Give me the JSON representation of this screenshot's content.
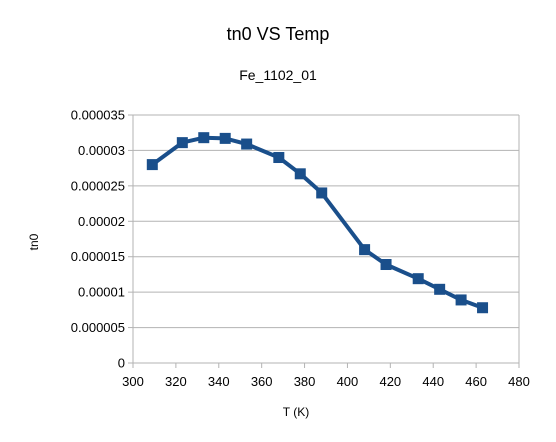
{
  "chart_data": {
    "type": "line",
    "title": "tn0 VS Temp",
    "subtitle": "Fe_1102_01",
    "xlabel": "T (K)",
    "ylabel": "tn0",
    "xlim": [
      300,
      480
    ],
    "ylim": [
      0,
      3.5e-05
    ],
    "x_ticks": [
      "300",
      "320",
      "340",
      "360",
      "380",
      "400",
      "420",
      "440",
      "460",
      "480"
    ],
    "y_ticks": [
      "0",
      "0.000005",
      "0.00001",
      "0.000015",
      "0.00002",
      "0.000025",
      "0.00003",
      "0.000035"
    ],
    "x_tick_values": [
      300,
      320,
      340,
      360,
      380,
      400,
      420,
      440,
      460,
      480
    ],
    "y_tick_values": [
      0,
      5e-06,
      1e-05,
      1.5e-05,
      2e-05,
      2.5e-05,
      3e-05,
      3.5e-05
    ],
    "grid": "horizontal",
    "legend": "none",
    "series": [
      {
        "color": "#1a4f8b",
        "marker": "square",
        "points": [
          [
            309,
            2.8e-05
          ],
          [
            323,
            3.11e-05
          ],
          [
            333,
            3.18e-05
          ],
          [
            343,
            3.17e-05
          ],
          [
            353,
            3.09e-05
          ],
          [
            368,
            2.9e-05
          ],
          [
            378,
            2.67e-05
          ],
          [
            388,
            2.4e-05
          ],
          [
            408,
            1.6e-05
          ],
          [
            418,
            1.39e-05
          ],
          [
            433,
            1.19e-05
          ],
          [
            443,
            1.04e-05
          ],
          [
            453,
            8.9e-06
          ],
          [
            463,
            7.8e-06
          ]
        ]
      }
    ]
  }
}
